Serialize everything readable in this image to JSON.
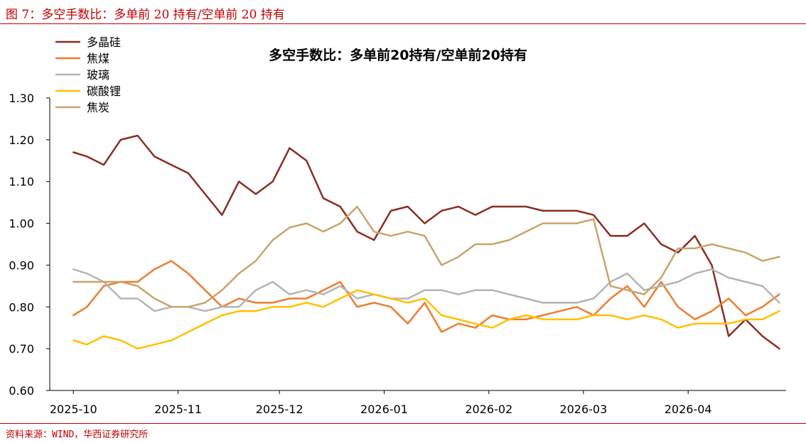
{
  "figure": {
    "title": "图 7：多空手数比：多单前 20 持有/空单前 20 持有",
    "source": "资料来源：WIND，华西证券研究所"
  },
  "chart_data": {
    "type": "line",
    "title": "多空手数比：多单前20持有/空单前20持有",
    "xlabel": "",
    "ylabel": "",
    "ylim": [
      0.6,
      1.3
    ],
    "yticks": [
      "0.60",
      "0.70",
      "0.80",
      "0.90",
      "1.00",
      "1.10",
      "1.20",
      "1.30"
    ],
    "xticks": [
      "2025-10",
      "2025-11",
      "2025-12",
      "2026-01",
      "2026-02",
      "2026-03",
      "2026-04"
    ],
    "x": [
      "2025-10-01",
      "2025-10-05",
      "2025-10-10",
      "2025-10-15",
      "2025-10-20",
      "2025-10-25",
      "2025-10-30",
      "2025-11-04",
      "2025-11-09",
      "2025-11-14",
      "2025-11-19",
      "2025-11-24",
      "2025-11-29",
      "2025-12-04",
      "2025-12-09",
      "2025-12-14",
      "2025-12-19",
      "2025-12-24",
      "2025-12-29",
      "2026-01-03",
      "2026-01-08",
      "2026-01-13",
      "2026-01-18",
      "2026-01-23",
      "2026-01-28",
      "2026-02-02",
      "2026-02-07",
      "2026-02-12",
      "2026-02-17",
      "2026-02-22",
      "2026-02-27",
      "2026-03-04",
      "2026-03-09",
      "2026-03-14",
      "2026-03-19",
      "2026-03-24",
      "2026-03-29",
      "2026-04-03",
      "2026-04-08",
      "2026-04-13",
      "2026-04-18",
      "2026-04-23",
      "2026-04-28"
    ],
    "series": [
      {
        "name": "多晶硅",
        "color": "#8b2e22",
        "values": [
          1.17,
          1.16,
          1.14,
          1.2,
          1.21,
          1.16,
          1.14,
          1.12,
          1.07,
          1.02,
          1.1,
          1.07,
          1.1,
          1.18,
          1.15,
          1.06,
          1.04,
          0.98,
          0.96,
          1.03,
          1.04,
          1.0,
          1.03,
          1.04,
          1.02,
          1.04,
          1.04,
          1.04,
          1.03,
          1.03,
          1.03,
          1.02,
          0.97,
          0.97,
          1.0,
          0.95,
          0.93,
          0.97,
          0.9,
          0.73,
          0.77,
          0.73,
          0.7
        ]
      },
      {
        "name": "焦煤",
        "color": "#ed7d31",
        "values": [
          0.78,
          0.8,
          0.85,
          0.86,
          0.86,
          0.89,
          0.91,
          0.88,
          0.84,
          0.8,
          0.82,
          0.81,
          0.81,
          0.82,
          0.82,
          0.84,
          0.86,
          0.8,
          0.81,
          0.8,
          0.76,
          0.81,
          0.74,
          0.76,
          0.75,
          0.78,
          0.77,
          0.77,
          0.78,
          0.79,
          0.8,
          0.78,
          0.82,
          0.85,
          0.8,
          0.86,
          0.8,
          0.77,
          0.79,
          0.82,
          0.78,
          0.8,
          0.83
        ]
      },
      {
        "name": "玻璃",
        "color": "#b4b4b4",
        "values": [
          0.89,
          0.88,
          0.86,
          0.82,
          0.82,
          0.79,
          0.8,
          0.8,
          0.79,
          0.8,
          0.8,
          0.84,
          0.86,
          0.83,
          0.84,
          0.83,
          0.85,
          0.82,
          0.83,
          0.82,
          0.82,
          0.84,
          0.84,
          0.83,
          0.84,
          0.84,
          0.83,
          0.82,
          0.81,
          0.81,
          0.81,
          0.82,
          0.86,
          0.88,
          0.84,
          0.85,
          0.86,
          0.88,
          0.89,
          0.87,
          0.86,
          0.85,
          0.81
        ]
      },
      {
        "name": "碳酸锂",
        "color": "#ffc000",
        "values": [
          0.72,
          0.71,
          0.73,
          0.72,
          0.7,
          0.71,
          0.72,
          0.74,
          0.76,
          0.78,
          0.79,
          0.79,
          0.8,
          0.8,
          0.81,
          0.8,
          0.82,
          0.84,
          0.83,
          0.82,
          0.81,
          0.82,
          0.78,
          0.77,
          0.76,
          0.75,
          0.77,
          0.78,
          0.77,
          0.77,
          0.77,
          0.78,
          0.78,
          0.77,
          0.78,
          0.77,
          0.75,
          0.76,
          0.76,
          0.76,
          0.77,
          0.77,
          0.79
        ]
      },
      {
        "name": "焦炭",
        "color": "#c9a46a",
        "values": [
          0.86,
          0.86,
          0.86,
          0.86,
          0.85,
          0.82,
          0.8,
          0.8,
          0.81,
          0.84,
          0.88,
          0.91,
          0.96,
          0.99,
          1.0,
          0.98,
          1.0,
          1.04,
          0.98,
          0.97,
          0.98,
          0.97,
          0.9,
          0.92,
          0.95,
          0.95,
          0.96,
          0.98,
          1.0,
          1.0,
          1.0,
          1.01,
          0.85,
          0.84,
          0.83,
          0.87,
          0.94,
          0.94,
          0.95,
          0.94,
          0.93,
          0.91,
          0.92
        ]
      }
    ],
    "legend": "top-left"
  }
}
